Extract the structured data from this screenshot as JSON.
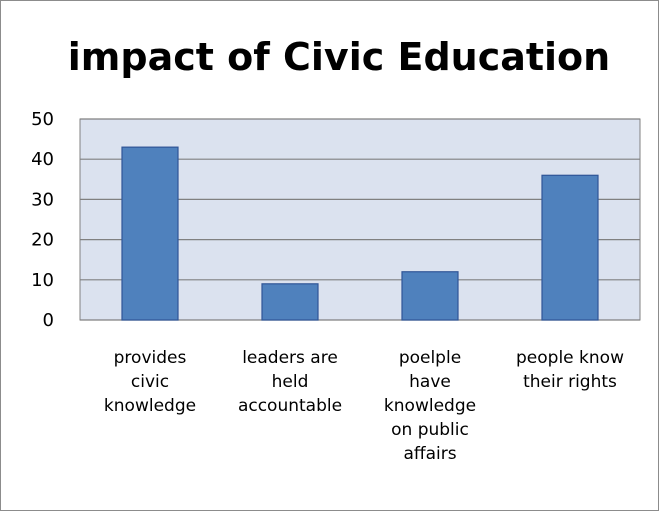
{
  "chart_data": {
    "type": "bar",
    "title": "impact of Civic Education",
    "xlabel": "",
    "ylabel": "",
    "categories": [
      "provides civic knowledge",
      "leaders are held accountable",
      "poelple have knowledge on public affairs",
      "people know their rights"
    ],
    "category_lines": [
      [
        "provides",
        "civic",
        "knowledge"
      ],
      [
        "leaders are",
        "held",
        "accountable"
      ],
      [
        "poelple",
        "have",
        "knowledge",
        "on public",
        "affairs"
      ],
      [
        "people know",
        "their rights"
      ]
    ],
    "values": [
      43,
      9,
      12,
      36
    ],
    "ylim": [
      0,
      50
    ],
    "yticks": [
      "0",
      "10",
      "20",
      "30",
      "40",
      "50"
    ],
    "grid": true,
    "legend": "none",
    "colors": {
      "bar_fill": "#4f81bd",
      "bar_stroke": "#2f5597",
      "plot_background": "#dbe2ef",
      "gridline": "#808080"
    }
  }
}
